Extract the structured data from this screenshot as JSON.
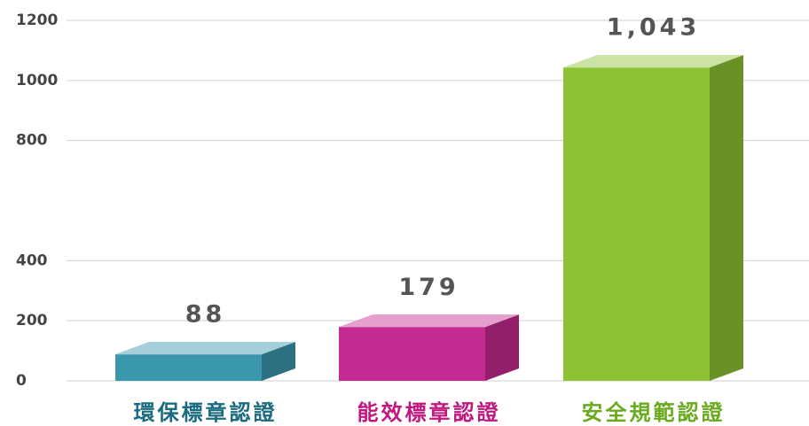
{
  "chart_data": {
    "type": "bar3d",
    "categories": [
      "環保標章認證",
      "能效標章認證",
      "安全規範認證"
    ],
    "values": [
      88,
      179,
      1043
    ],
    "value_labels": [
      "88",
      "179",
      "1,043"
    ],
    "colors": [
      "#3a97ac",
      "#c42a8f",
      "#8cc234"
    ],
    "label_colors": [
      "#1a6b80",
      "#c0187f",
      "#6aaa1e"
    ],
    "ylim": [
      0,
      1200
    ],
    "yticks": [
      0,
      200,
      400,
      800,
      1000,
      {
        "value": 1200,
        "label": "1200"
      }
    ],
    "grid": true
  }
}
